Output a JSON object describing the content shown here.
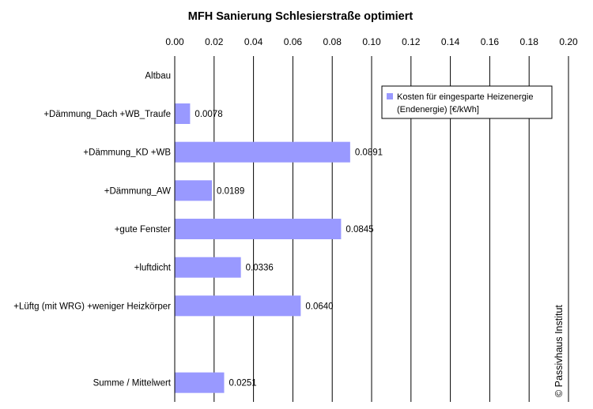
{
  "chart_data": {
    "type": "bar",
    "orientation": "horizontal",
    "title": "MFH Sanierung Schlesierstraße optimiert",
    "xlabel": "",
    "ylabel": "",
    "xlim": [
      0,
      0.2
    ],
    "x_ticks": [
      "0.00",
      "0.02",
      "0.04",
      "0.06",
      "0.08",
      "0.10",
      "0.12",
      "0.14",
      "0.16",
      "0.18",
      "0.20"
    ],
    "x_axis_position": "top",
    "grid": "vertical major gridlines",
    "categories": [
      "Altbau",
      "+Dämmung_Dach +WB_Traufe",
      "+Dämmung_KD +WB",
      "+Dämmung_AW",
      "+gute Fenster",
      "+luftdicht",
      "+Lüftg (mit WRG)  +weniger Heizkörper",
      "",
      "Summe / Mittelwert"
    ],
    "series": [
      {
        "name": "Kosten für eingesparte Heizenergie (Endenergie) [€/kWh]",
        "color": "#9999ff",
        "values": [
          null,
          0.0078,
          0.0891,
          0.0189,
          0.0845,
          0.0336,
          0.064,
          null,
          0.0251
        ],
        "labels": [
          "",
          "0.0078",
          "0.0891",
          "0.0189",
          "0.0845",
          "0.0336",
          "0.0640",
          "",
          "0.0251"
        ]
      }
    ],
    "legend": {
      "position": "top-right",
      "lines": [
        "Kosten für eingesparte Heizenergie",
        "(Endenergie) [€/kWh]"
      ]
    }
  },
  "copyright": "© Passivhaus Institut"
}
